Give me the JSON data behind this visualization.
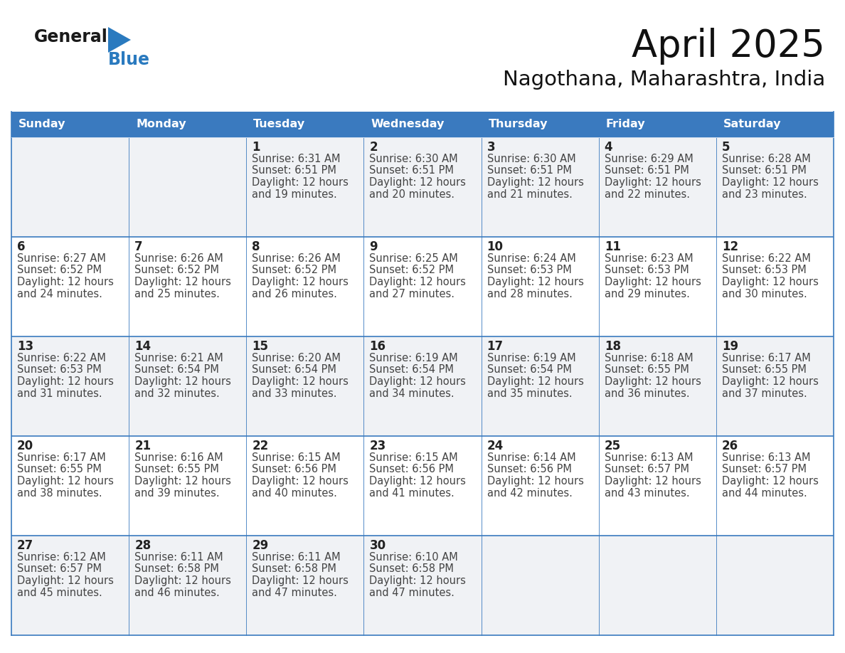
{
  "title": "April 2025",
  "subtitle": "Nagothana, Maharashtra, India",
  "days_of_week": [
    "Sunday",
    "Monday",
    "Tuesday",
    "Wednesday",
    "Thursday",
    "Friday",
    "Saturday"
  ],
  "header_bg": "#3a7abf",
  "header_text": "#ffffff",
  "cell_bg_odd": "#f0f2f5",
  "cell_bg_even": "#ffffff",
  "border_color": "#3a7abf",
  "separator_color": "#3a7abf",
  "text_color": "#444444",
  "day_num_color": "#222222",
  "logo_general_color": "#1a1a1a",
  "logo_blue_color": "#2a7abf",
  "calendar": [
    [
      {
        "day": null,
        "sunrise": null,
        "sunset": null,
        "daylight_h": null,
        "daylight_m": null
      },
      {
        "day": null,
        "sunrise": null,
        "sunset": null,
        "daylight_h": null,
        "daylight_m": null
      },
      {
        "day": 1,
        "sunrise": "6:31 AM",
        "sunset": "6:51 PM",
        "daylight_h": "12 hours",
        "daylight_m": "and 19 minutes."
      },
      {
        "day": 2,
        "sunrise": "6:30 AM",
        "sunset": "6:51 PM",
        "daylight_h": "12 hours",
        "daylight_m": "and 20 minutes."
      },
      {
        "day": 3,
        "sunrise": "6:30 AM",
        "sunset": "6:51 PM",
        "daylight_h": "12 hours",
        "daylight_m": "and 21 minutes."
      },
      {
        "day": 4,
        "sunrise": "6:29 AM",
        "sunset": "6:51 PM",
        "daylight_h": "12 hours",
        "daylight_m": "and 22 minutes."
      },
      {
        "day": 5,
        "sunrise": "6:28 AM",
        "sunset": "6:51 PM",
        "daylight_h": "12 hours",
        "daylight_m": "and 23 minutes."
      }
    ],
    [
      {
        "day": 6,
        "sunrise": "6:27 AM",
        "sunset": "6:52 PM",
        "daylight_h": "12 hours",
        "daylight_m": "and 24 minutes."
      },
      {
        "day": 7,
        "sunrise": "6:26 AM",
        "sunset": "6:52 PM",
        "daylight_h": "12 hours",
        "daylight_m": "and 25 minutes."
      },
      {
        "day": 8,
        "sunrise": "6:26 AM",
        "sunset": "6:52 PM",
        "daylight_h": "12 hours",
        "daylight_m": "and 26 minutes."
      },
      {
        "day": 9,
        "sunrise": "6:25 AM",
        "sunset": "6:52 PM",
        "daylight_h": "12 hours",
        "daylight_m": "and 27 minutes."
      },
      {
        "day": 10,
        "sunrise": "6:24 AM",
        "sunset": "6:53 PM",
        "daylight_h": "12 hours",
        "daylight_m": "and 28 minutes."
      },
      {
        "day": 11,
        "sunrise": "6:23 AM",
        "sunset": "6:53 PM",
        "daylight_h": "12 hours",
        "daylight_m": "and 29 minutes."
      },
      {
        "day": 12,
        "sunrise": "6:22 AM",
        "sunset": "6:53 PM",
        "daylight_h": "12 hours",
        "daylight_m": "and 30 minutes."
      }
    ],
    [
      {
        "day": 13,
        "sunrise": "6:22 AM",
        "sunset": "6:53 PM",
        "daylight_h": "12 hours",
        "daylight_m": "and 31 minutes."
      },
      {
        "day": 14,
        "sunrise": "6:21 AM",
        "sunset": "6:54 PM",
        "daylight_h": "12 hours",
        "daylight_m": "and 32 minutes."
      },
      {
        "day": 15,
        "sunrise": "6:20 AM",
        "sunset": "6:54 PM",
        "daylight_h": "12 hours",
        "daylight_m": "and 33 minutes."
      },
      {
        "day": 16,
        "sunrise": "6:19 AM",
        "sunset": "6:54 PM",
        "daylight_h": "12 hours",
        "daylight_m": "and 34 minutes."
      },
      {
        "day": 17,
        "sunrise": "6:19 AM",
        "sunset": "6:54 PM",
        "daylight_h": "12 hours",
        "daylight_m": "and 35 minutes."
      },
      {
        "day": 18,
        "sunrise": "6:18 AM",
        "sunset": "6:55 PM",
        "daylight_h": "12 hours",
        "daylight_m": "and 36 minutes."
      },
      {
        "day": 19,
        "sunrise": "6:17 AM",
        "sunset": "6:55 PM",
        "daylight_h": "12 hours",
        "daylight_m": "and 37 minutes."
      }
    ],
    [
      {
        "day": 20,
        "sunrise": "6:17 AM",
        "sunset": "6:55 PM",
        "daylight_h": "12 hours",
        "daylight_m": "and 38 minutes."
      },
      {
        "day": 21,
        "sunrise": "6:16 AM",
        "sunset": "6:55 PM",
        "daylight_h": "12 hours",
        "daylight_m": "and 39 minutes."
      },
      {
        "day": 22,
        "sunrise": "6:15 AM",
        "sunset": "6:56 PM",
        "daylight_h": "12 hours",
        "daylight_m": "and 40 minutes."
      },
      {
        "day": 23,
        "sunrise": "6:15 AM",
        "sunset": "6:56 PM",
        "daylight_h": "12 hours",
        "daylight_m": "and 41 minutes."
      },
      {
        "day": 24,
        "sunrise": "6:14 AM",
        "sunset": "6:56 PM",
        "daylight_h": "12 hours",
        "daylight_m": "and 42 minutes."
      },
      {
        "day": 25,
        "sunrise": "6:13 AM",
        "sunset": "6:57 PM",
        "daylight_h": "12 hours",
        "daylight_m": "and 43 minutes."
      },
      {
        "day": 26,
        "sunrise": "6:13 AM",
        "sunset": "6:57 PM",
        "daylight_h": "12 hours",
        "daylight_m": "and 44 minutes."
      }
    ],
    [
      {
        "day": 27,
        "sunrise": "6:12 AM",
        "sunset": "6:57 PM",
        "daylight_h": "12 hours",
        "daylight_m": "and 45 minutes."
      },
      {
        "day": 28,
        "sunrise": "6:11 AM",
        "sunset": "6:58 PM",
        "daylight_h": "12 hours",
        "daylight_m": "and 46 minutes."
      },
      {
        "day": 29,
        "sunrise": "6:11 AM",
        "sunset": "6:58 PM",
        "daylight_h": "12 hours",
        "daylight_m": "and 47 minutes."
      },
      {
        "day": 30,
        "sunrise": "6:10 AM",
        "sunset": "6:58 PM",
        "daylight_h": "12 hours",
        "daylight_m": "and 47 minutes."
      },
      {
        "day": null,
        "sunrise": null,
        "sunset": null,
        "daylight_h": null,
        "daylight_m": null
      },
      {
        "day": null,
        "sunrise": null,
        "sunset": null,
        "daylight_h": null,
        "daylight_m": null
      },
      {
        "day": null,
        "sunrise": null,
        "sunset": null,
        "daylight_h": null,
        "daylight_m": null
      }
    ]
  ],
  "row_bg": [
    "#f0f2f5",
    "#ffffff",
    "#f0f2f5",
    "#ffffff",
    "#f0f2f5"
  ]
}
